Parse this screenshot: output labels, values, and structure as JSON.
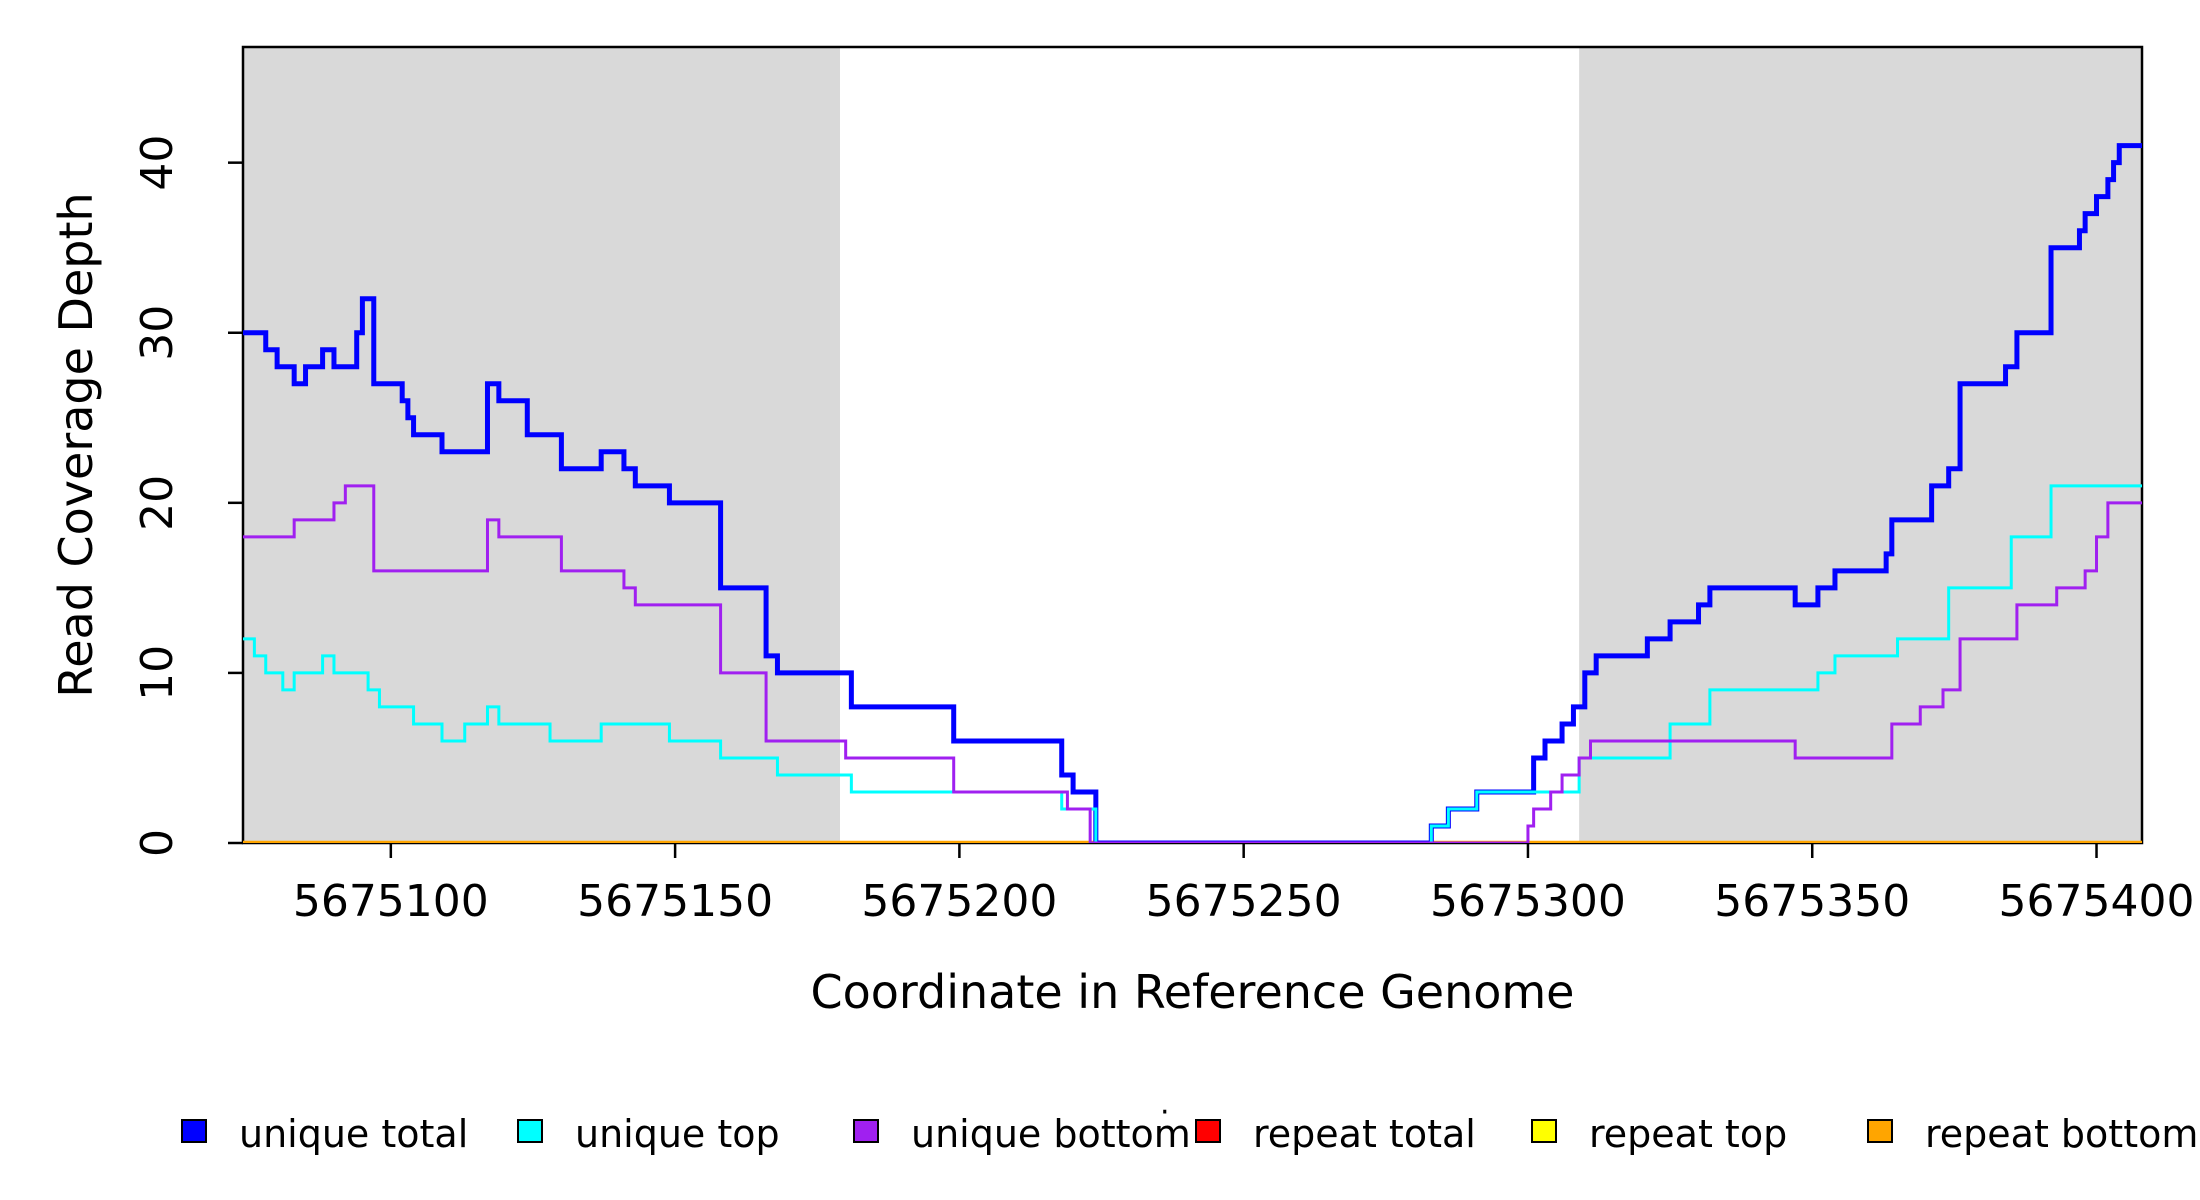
{
  "chart_data": {
    "type": "line",
    "subtype": "step-post",
    "title": "",
    "xlabel": "Coordinate in Reference Genome",
    "ylabel": "Read Coverage Depth",
    "xlim": [
      5675074,
      5675408
    ],
    "ylim": [
      0,
      46.8
    ],
    "x_ticks": [
      5675100,
      5675150,
      5675200,
      5675250,
      5675300,
      5675350,
      5675400
    ],
    "x_tick_labels": [
      "5675100",
      "5675150",
      "5675200",
      "5675250",
      "5675300",
      "5675350",
      "5675400"
    ],
    "y_ticks": [
      0,
      10,
      20,
      30,
      40
    ],
    "y_tick_labels": [
      "0",
      "10",
      "20",
      "30",
      "40"
    ],
    "grid": false,
    "plot_background": "#ffffff",
    "shaded_bands": [
      {
        "x0": 5675074,
        "x1": 5675179,
        "color": "#d9d9d9"
      },
      {
        "x0": 5675309,
        "x1": 5675408,
        "color": "#d9d9d9"
      }
    ],
    "legend": {
      "position": "bottom",
      "entries": [
        {
          "label": "unique total",
          "color": "#0000ff"
        },
        {
          "label": "unique top",
          "color": "#00ffff"
        },
        {
          "label": "unique bottom",
          "color": "#a020f0"
        },
        {
          "label": "repeat total",
          "color": "#ff0000"
        },
        {
          "label": "repeat top",
          "color": "#ffff00"
        },
        {
          "label": "repeat bottom",
          "color": "#ffa500"
        }
      ],
      "stray_mark": "·"
    },
    "series": [
      {
        "name": "repeat total",
        "color": "#ff0000",
        "width": 4,
        "points": [
          [
            5675074,
            0
          ]
        ]
      },
      {
        "name": "repeat top",
        "color": "#ffff00",
        "width": 4,
        "points": [
          [
            5675074,
            0
          ]
        ]
      },
      {
        "name": "repeat bottom",
        "color": "#ffa500",
        "width": 4.5,
        "points": [
          [
            5675074,
            0
          ]
        ]
      },
      {
        "name": "unique total",
        "color": "#0000ff",
        "width": 5,
        "points": [
          [
            5675074,
            30
          ],
          [
            5675078,
            29
          ],
          [
            5675080,
            28
          ],
          [
            5675083,
            27
          ],
          [
            5675085,
            28
          ],
          [
            5675088,
            29
          ],
          [
            5675090,
            28
          ],
          [
            5675094,
            30
          ],
          [
            5675095,
            32
          ],
          [
            5675097,
            27
          ],
          [
            5675102,
            26
          ],
          [
            5675103,
            25
          ],
          [
            5675104,
            24
          ],
          [
            5675109,
            23
          ],
          [
            5675117,
            27
          ],
          [
            5675119,
            26
          ],
          [
            5675124,
            24
          ],
          [
            5675130,
            22
          ],
          [
            5675137,
            23
          ],
          [
            5675141,
            22
          ],
          [
            5675143,
            21
          ],
          [
            5675149,
            20
          ],
          [
            5675158,
            15
          ],
          [
            5675166,
            11
          ],
          [
            5675168,
            10
          ],
          [
            5675181,
            8
          ],
          [
            5675199,
            6
          ],
          [
            5675218,
            4
          ],
          [
            5675220,
            3
          ],
          [
            5675224,
            0
          ],
          [
            5675283,
            1
          ],
          [
            5675286,
            2
          ],
          [
            5675291,
            3
          ],
          [
            5675301,
            5
          ],
          [
            5675303,
            6
          ],
          [
            5675306,
            7
          ],
          [
            5675308,
            8
          ],
          [
            5675310,
            10
          ],
          [
            5675312,
            11
          ],
          [
            5675321,
            12
          ],
          [
            5675325,
            13
          ],
          [
            5675330,
            14
          ],
          [
            5675332,
            15
          ],
          [
            5675347,
            14
          ],
          [
            5675351,
            15
          ],
          [
            5675354,
            16
          ],
          [
            5675363,
            17
          ],
          [
            5675364,
            19
          ],
          [
            5675371,
            21
          ],
          [
            5675374,
            22
          ],
          [
            5675376,
            27
          ],
          [
            5675384,
            28
          ],
          [
            5675386,
            30
          ],
          [
            5675392,
            35
          ],
          [
            5675397,
            36
          ],
          [
            5675398,
            37
          ],
          [
            5675400,
            38
          ],
          [
            5675402,
            39
          ],
          [
            5675403,
            40
          ],
          [
            5675404,
            41
          ]
        ]
      },
      {
        "name": "unique top",
        "color": "#00ffff",
        "width": 3,
        "points": [
          [
            5675074,
            12
          ],
          [
            5675076,
            11
          ],
          [
            5675078,
            10
          ],
          [
            5675081,
            9
          ],
          [
            5675083,
            10
          ],
          [
            5675088,
            11
          ],
          [
            5675090,
            10
          ],
          [
            5675096,
            9
          ],
          [
            5675098,
            8
          ],
          [
            5675104,
            7
          ],
          [
            5675109,
            6
          ],
          [
            5675113,
            7
          ],
          [
            5675117,
            8
          ],
          [
            5675119,
            7
          ],
          [
            5675128,
            6
          ],
          [
            5675137,
            7
          ],
          [
            5675149,
            6
          ],
          [
            5675158,
            5
          ],
          [
            5675168,
            4
          ],
          [
            5675181,
            3
          ],
          [
            5675218,
            2
          ],
          [
            5675224,
            0
          ],
          [
            5675283,
            1
          ],
          [
            5675286,
            2
          ],
          [
            5675291,
            3
          ],
          [
            5675309,
            5
          ],
          [
            5675325,
            7
          ],
          [
            5675332,
            9
          ],
          [
            5675351,
            10
          ],
          [
            5675354,
            11
          ],
          [
            5675365,
            12
          ],
          [
            5675374,
            15
          ],
          [
            5675385,
            18
          ],
          [
            5675392,
            21
          ]
        ]
      },
      {
        "name": "unique bottom",
        "color": "#a020f0",
        "width": 3,
        "points": [
          [
            5675074,
            18
          ],
          [
            5675083,
            19
          ],
          [
            5675090,
            20
          ],
          [
            5675092,
            21
          ],
          [
            5675097,
            16
          ],
          [
            5675117,
            19
          ],
          [
            5675119,
            18
          ],
          [
            5675130,
            16
          ],
          [
            5675141,
            15
          ],
          [
            5675143,
            14
          ],
          [
            5675158,
            10
          ],
          [
            5675166,
            6
          ],
          [
            5675180,
            5
          ],
          [
            5675199,
            3
          ],
          [
            5675219,
            2
          ],
          [
            5675223,
            0
          ],
          [
            5675300,
            1
          ],
          [
            5675301,
            2
          ],
          [
            5675304,
            3
          ],
          [
            5675306,
            4
          ],
          [
            5675309,
            5
          ],
          [
            5675311,
            6
          ],
          [
            5675347,
            5
          ],
          [
            5675364,
            7
          ],
          [
            5675369,
            8
          ],
          [
            5675373,
            9
          ],
          [
            5675376,
            12
          ],
          [
            5675386,
            14
          ],
          [
            5675393,
            15
          ],
          [
            5675398,
            16
          ],
          [
            5675400,
            18
          ],
          [
            5675402,
            20
          ]
        ]
      }
    ],
    "axis_color": "#000000"
  }
}
